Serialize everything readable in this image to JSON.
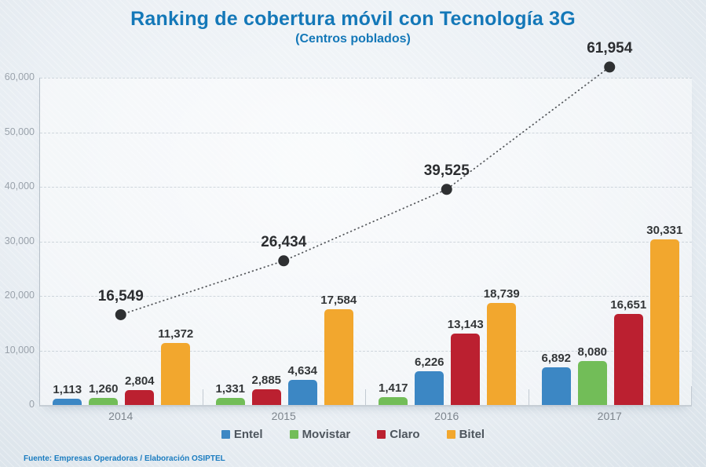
{
  "title": "Ranking de cobertura móvil con Tecnología 3G",
  "subtitle": "(Centros poblados)",
  "footer": "Fuente: Empresas Operadoras / Elaboración OSIPTEL",
  "colors": {
    "title_blue": "#1478b8",
    "entel_blue": "#3c87c4",
    "movistar_green": "#72bd58",
    "claro_red": "#bb2030",
    "bitel_yellow": "#f2a72e",
    "trend_dot": "#2e3032",
    "axis_gray": "#b6bfc8",
    "label_dark": "#333638",
    "footer_blue": "#1a7cc0"
  },
  "chart_data": {
    "type": "bar",
    "title": "Ranking de cobertura móvil con Tecnología 3G",
    "subtitle": "(Centros poblados)",
    "categories": [
      "2014",
      "2015",
      "2016",
      "2017"
    ],
    "series": [
      {
        "name": "Entel",
        "color": "#3c87c4",
        "values": [
          1113,
          4634,
          6226,
          6892
        ]
      },
      {
        "name": "Movistar",
        "color": "#72bd58",
        "values": [
          1260,
          1331,
          1417,
          8080
        ]
      },
      {
        "name": "Claro",
        "color": "#bb2030",
        "values": [
          2804,
          2885,
          13143,
          16651
        ]
      },
      {
        "name": "Bitel",
        "color": "#f2a72e",
        "values": [
          11372,
          17584,
          18739,
          30331
        ]
      }
    ],
    "totals": {
      "name": "Total",
      "values": [
        16549,
        26434,
        39525,
        61954
      ],
      "style": "dotted-line-with-black-markers"
    },
    "bar_order_per_year": [
      [
        "Entel",
        "Movistar",
        "Claro",
        "Bitel"
      ],
      [
        "Movistar",
        "Claro",
        "Entel",
        "Bitel"
      ],
      [
        "Movistar",
        "Entel",
        "Claro",
        "Bitel"
      ],
      [
        "Entel",
        "Movistar",
        "Claro",
        "Bitel"
      ]
    ],
    "ylim": [
      0,
      60000
    ],
    "y_ticks": [
      "0",
      "10,000",
      "20,000",
      "30,000",
      "40,000",
      "50,000",
      "60,000"
    ],
    "grid": true,
    "legend_position": "bottom",
    "legend": [
      "Entel",
      "Movistar",
      "Claro",
      "Bitel"
    ]
  }
}
